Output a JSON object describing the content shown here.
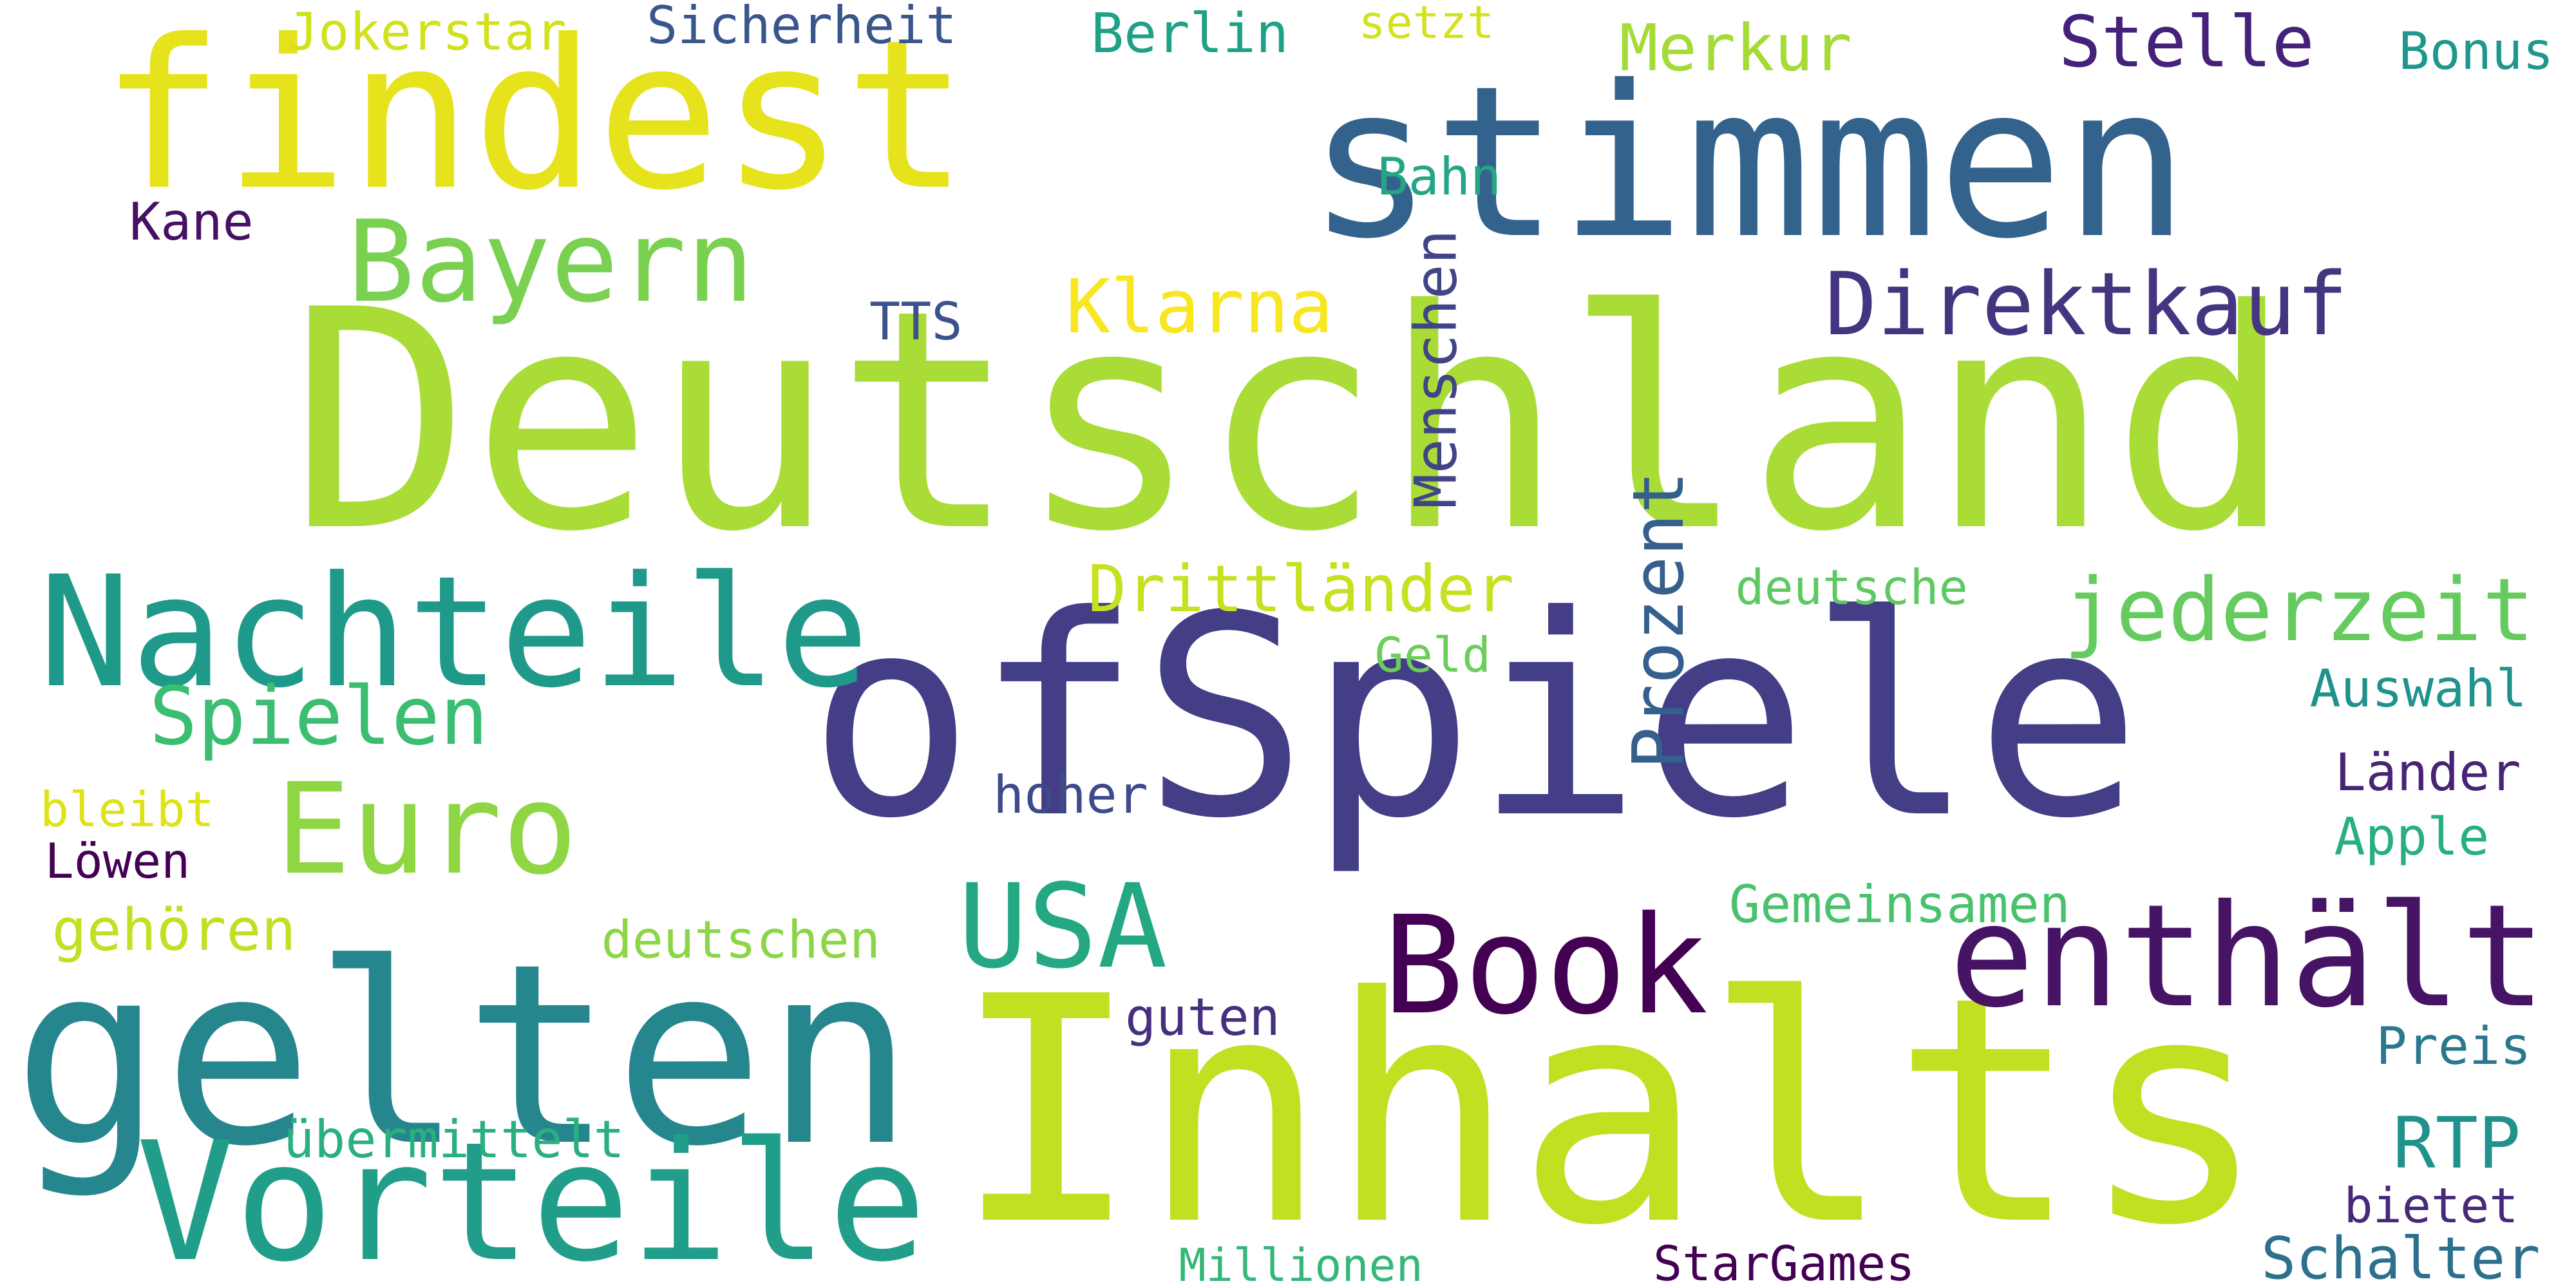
{
  "words": [
    {
      "text": "Deutschland",
      "color": "#a9dc37"
    },
    {
      "text": "ofSpiele",
      "color": "#433e86"
    },
    {
      "text": "stimmen",
      "color": "#33638d"
    },
    {
      "text": "Inhalts",
      "color": "#c3df21"
    },
    {
      "text": "findest",
      "color": "#e6e31c"
    },
    {
      "text": "gelten",
      "color": "#26868e"
    },
    {
      "text": "Vorteile",
      "color": "#219e8a"
    },
    {
      "text": "Nachteile",
      "color": "#1f9a8a"
    },
    {
      "text": "Bayern",
      "color": "#7ad151"
    },
    {
      "text": "Euro",
      "color": "#8ed644"
    },
    {
      "text": "USA",
      "color": "#23a883"
    },
    {
      "text": "Book",
      "color": "#440154"
    },
    {
      "text": "enthält",
      "color": "#471365"
    },
    {
      "text": "Direktkauf",
      "color": "#453581"
    },
    {
      "text": "Stelle",
      "color": "#46217a"
    },
    {
      "text": "jederzeit",
      "color": "#65cb5e"
    },
    {
      "text": "Spielen",
      "color": "#3bbd72"
    },
    {
      "text": "Klarna",
      "color": "#f7e620"
    },
    {
      "text": "Prozent",
      "color": "#355f8d"
    },
    {
      "text": "Drittländer",
      "color": "#c7e020"
    },
    {
      "text": "RTP",
      "color": "#21918c"
    },
    {
      "text": "Merkur",
      "color": "#a5db36"
    },
    {
      "text": "Berlin",
      "color": "#1fa187"
    },
    {
      "text": "Sicherheit",
      "color": "#39558c"
    },
    {
      "text": "Jokerstar",
      "color": "#d1e11c"
    },
    {
      "text": "setzt",
      "color": "#d3e21b"
    },
    {
      "text": "Bonus",
      "color": "#1f978b"
    },
    {
      "text": "Bahn",
      "color": "#25a584"
    },
    {
      "text": "Kane",
      "color": "#471063"
    },
    {
      "text": "TTS",
      "color": "#3b528b"
    },
    {
      "text": "Menschen",
      "color": "#414487"
    },
    {
      "text": "deutsche",
      "color": "#5ec962"
    },
    {
      "text": "Geld",
      "color": "#6ccd5a"
    },
    {
      "text": "Auswahl",
      "color": "#20928c"
    },
    {
      "text": "Länder",
      "color": "#482475"
    },
    {
      "text": "Apple",
      "color": "#29af7f"
    },
    {
      "text": "hoher",
      "color": "#3e4a89"
    },
    {
      "text": "bleibt",
      "color": "#dde318"
    },
    {
      "text": "Löwen",
      "color": "#440154"
    },
    {
      "text": "gehören",
      "color": "#c2df23"
    },
    {
      "text": "deutschen",
      "color": "#8bd646"
    },
    {
      "text": "Gemeinsamen",
      "color": "#4ac16d"
    },
    {
      "text": "guten",
      "color": "#46307e"
    },
    {
      "text": "Preis",
      "color": "#2a788e"
    },
    {
      "text": "übermittelt",
      "color": "#2ab07f"
    },
    {
      "text": "bietet",
      "color": "#482878"
    },
    {
      "text": "Schalter",
      "color": "#2d708e"
    },
    {
      "text": "Millionen",
      "color": "#35b779"
    },
    {
      "text": "StarGames",
      "color": "#440154"
    }
  ]
}
